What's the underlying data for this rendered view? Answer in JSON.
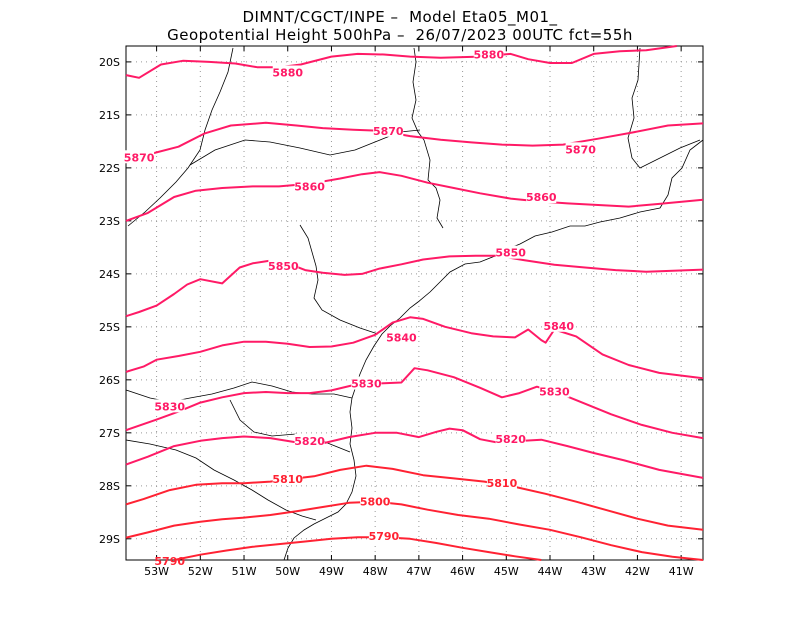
{
  "title_line1": "DIMNT/CGCT/INPE –  Model Eta05_M01_",
  "title_line2": "Geopotential Height 500hPa –  26/07/2023 00UTC fct=55h",
  "chart_data": {
    "type": "contour",
    "variable": "Geopotential Height 500hPa",
    "grid": true,
    "xlim": [
      -53.7,
      -40.5
    ],
    "ylim": [
      -29.4,
      -19.7
    ],
    "x_ticks": [
      {
        "value": -53,
        "label": "53W"
      },
      {
        "value": -52,
        "label": "52W"
      },
      {
        "value": -51,
        "label": "51W"
      },
      {
        "value": -50,
        "label": "50W"
      },
      {
        "value": -49,
        "label": "49W"
      },
      {
        "value": -48,
        "label": "48W"
      },
      {
        "value": -47,
        "label": "47W"
      },
      {
        "value": -46,
        "label": "46W"
      },
      {
        "value": -45,
        "label": "45W"
      },
      {
        "value": -44,
        "label": "44W"
      },
      {
        "value": -43,
        "label": "43W"
      },
      {
        "value": -42,
        "label": "42W"
      },
      {
        "value": -41,
        "label": "41W"
      }
    ],
    "y_ticks": [
      {
        "value": -20,
        "label": "20S"
      },
      {
        "value": -21,
        "label": "21S"
      },
      {
        "value": -22,
        "label": "22S"
      },
      {
        "value": -23,
        "label": "23S"
      },
      {
        "value": -24,
        "label": "24S"
      },
      {
        "value": -25,
        "label": "25S"
      },
      {
        "value": -26,
        "label": "26S"
      },
      {
        "value": -27,
        "label": "27S"
      },
      {
        "value": -28,
        "label": "28S"
      },
      {
        "value": -29,
        "label": "29S"
      }
    ],
    "contours": [
      {
        "level": "5880",
        "color": "#ff1a66",
        "points": [
          [
            -53.7,
            -20.25
          ],
          [
            -53.4,
            -20.3
          ],
          [
            -52.9,
            -20.05
          ],
          [
            -52.4,
            -19.98
          ],
          [
            -51.8,
            -20.0
          ],
          [
            -51.2,
            -20.03
          ],
          [
            -50.7,
            -20.1
          ],
          [
            -50.2,
            -20.1
          ],
          [
            -49.7,
            -20.05
          ],
          [
            -49.0,
            -19.9
          ],
          [
            -48.4,
            -19.85
          ],
          [
            -47.8,
            -19.86
          ],
          [
            -47.2,
            -19.9
          ],
          [
            -46.5,
            -19.92
          ],
          [
            -45.6,
            -19.9
          ],
          [
            -44.9,
            -19.85
          ],
          [
            -44.5,
            -19.95
          ],
          [
            -44.0,
            -20.02
          ],
          [
            -43.5,
            -20.02
          ],
          [
            -43.0,
            -19.85
          ],
          [
            -42.4,
            -19.8
          ],
          [
            -41.8,
            -19.78
          ],
          [
            -41.1,
            -19.7
          ]
        ],
        "labels": [
          [
            -50.0,
            -20.2
          ],
          [
            -45.4,
            -19.86
          ]
        ]
      },
      {
        "level": "5870",
        "color": "#ff1a66",
        "points": [
          [
            -53.7,
            -21.9
          ],
          [
            -53.2,
            -21.75
          ],
          [
            -52.5,
            -21.6
          ],
          [
            -51.9,
            -21.35
          ],
          [
            -51.3,
            -21.2
          ],
          [
            -50.5,
            -21.15
          ],
          [
            -49.8,
            -21.2
          ],
          [
            -49.2,
            -21.25
          ],
          [
            -48.5,
            -21.28
          ],
          [
            -47.9,
            -21.3
          ],
          [
            -47.2,
            -21.4
          ],
          [
            -46.5,
            -21.47
          ],
          [
            -45.8,
            -21.52
          ],
          [
            -45.1,
            -21.56
          ],
          [
            -44.4,
            -21.58
          ],
          [
            -43.7,
            -21.56
          ],
          [
            -42.9,
            -21.45
          ],
          [
            -42.1,
            -21.33
          ],
          [
            -41.3,
            -21.2
          ],
          [
            -40.5,
            -21.16
          ]
        ],
        "labels": [
          [
            -53.4,
            -21.8
          ],
          [
            -47.7,
            -21.3
          ],
          [
            -43.3,
            -21.65
          ]
        ]
      },
      {
        "level": "5860",
        "color": "#ff1a66",
        "points": [
          [
            -53.7,
            -23.0
          ],
          [
            -53.2,
            -22.85
          ],
          [
            -52.6,
            -22.55
          ],
          [
            -52.1,
            -22.43
          ],
          [
            -51.5,
            -22.38
          ],
          [
            -50.8,
            -22.35
          ],
          [
            -50.2,
            -22.35
          ],
          [
            -49.5,
            -22.3
          ],
          [
            -48.8,
            -22.2
          ],
          [
            -48.3,
            -22.12
          ],
          [
            -47.9,
            -22.08
          ],
          [
            -47.4,
            -22.15
          ],
          [
            -46.8,
            -22.28
          ],
          [
            -46.2,
            -22.38
          ],
          [
            -45.6,
            -22.48
          ],
          [
            -44.9,
            -22.58
          ],
          [
            -44.3,
            -22.63
          ],
          [
            -43.6,
            -22.67
          ],
          [
            -42.9,
            -22.7
          ],
          [
            -42.2,
            -22.73
          ],
          [
            -41.5,
            -22.68
          ],
          [
            -40.5,
            -22.6
          ]
        ],
        "labels": [
          [
            -49.5,
            -22.35
          ],
          [
            -44.2,
            -22.55
          ]
        ]
      },
      {
        "level": "5850",
        "color": "#ff1a66",
        "points": [
          [
            -53.7,
            -24.8
          ],
          [
            -53.4,
            -24.72
          ],
          [
            -53.0,
            -24.6
          ],
          [
            -52.6,
            -24.38
          ],
          [
            -52.3,
            -24.2
          ],
          [
            -52.0,
            -24.1
          ],
          [
            -51.5,
            -24.18
          ],
          [
            -51.1,
            -23.88
          ],
          [
            -50.8,
            -23.8
          ],
          [
            -50.4,
            -23.75
          ],
          [
            -50.0,
            -23.8
          ],
          [
            -49.6,
            -23.93
          ],
          [
            -49.2,
            -23.98
          ],
          [
            -48.7,
            -24.02
          ],
          [
            -48.3,
            -24.0
          ],
          [
            -47.9,
            -23.9
          ],
          [
            -47.4,
            -23.82
          ],
          [
            -46.9,
            -23.73
          ],
          [
            -46.3,
            -23.67
          ],
          [
            -45.7,
            -23.66
          ],
          [
            -45.2,
            -23.66
          ],
          [
            -44.6,
            -23.74
          ],
          [
            -43.9,
            -23.83
          ],
          [
            -43.2,
            -23.88
          ],
          [
            -42.5,
            -23.93
          ],
          [
            -41.8,
            -23.96
          ],
          [
            -40.5,
            -23.92
          ]
        ],
        "labels": [
          [
            -50.1,
            -23.85
          ],
          [
            -44.9,
            -23.6
          ]
        ]
      },
      {
        "level": "5840",
        "color": "#ff1a66",
        "points": [
          [
            -53.7,
            -25.85
          ],
          [
            -53.3,
            -25.75
          ],
          [
            -53.0,
            -25.62
          ],
          [
            -52.5,
            -25.55
          ],
          [
            -52.0,
            -25.47
          ],
          [
            -51.5,
            -25.35
          ],
          [
            -51.0,
            -25.28
          ],
          [
            -50.5,
            -25.28
          ],
          [
            -50.0,
            -25.32
          ],
          [
            -49.5,
            -25.38
          ],
          [
            -49.0,
            -25.37
          ],
          [
            -48.5,
            -25.3
          ],
          [
            -48.0,
            -25.15
          ],
          [
            -47.6,
            -24.92
          ],
          [
            -47.2,
            -24.82
          ],
          [
            -46.9,
            -24.85
          ],
          [
            -46.4,
            -25.0
          ],
          [
            -45.8,
            -25.12
          ],
          [
            -45.3,
            -25.18
          ],
          [
            -44.8,
            -25.2
          ],
          [
            -44.5,
            -25.05
          ],
          [
            -44.2,
            -25.25
          ],
          [
            -44.1,
            -25.3
          ],
          [
            -43.9,
            -25.05
          ],
          [
            -43.4,
            -25.18
          ],
          [
            -42.8,
            -25.52
          ],
          [
            -42.2,
            -25.72
          ],
          [
            -41.5,
            -25.87
          ],
          [
            -40.5,
            -25.97
          ]
        ],
        "labels": [
          [
            -47.4,
            -25.2
          ],
          [
            -43.8,
            -24.98
          ]
        ]
      },
      {
        "level": "5830",
        "color": "#ff1a66",
        "points": [
          [
            -53.7,
            -26.95
          ],
          [
            -53.0,
            -26.75
          ],
          [
            -52.5,
            -26.6
          ],
          [
            -52.0,
            -26.43
          ],
          [
            -51.5,
            -26.33
          ],
          [
            -51.0,
            -26.25
          ],
          [
            -50.5,
            -26.23
          ],
          [
            -50.0,
            -26.25
          ],
          [
            -49.5,
            -26.25
          ],
          [
            -49.0,
            -26.2
          ],
          [
            -48.5,
            -26.1
          ],
          [
            -47.9,
            -26.07
          ],
          [
            -47.4,
            -26.05
          ],
          [
            -47.1,
            -25.78
          ],
          [
            -46.8,
            -25.82
          ],
          [
            -46.2,
            -25.95
          ],
          [
            -45.6,
            -26.15
          ],
          [
            -45.1,
            -26.33
          ],
          [
            -44.7,
            -26.25
          ],
          [
            -44.3,
            -26.13
          ],
          [
            -43.8,
            -26.25
          ],
          [
            -43.2,
            -26.45
          ],
          [
            -42.6,
            -26.65
          ],
          [
            -41.9,
            -26.85
          ],
          [
            -41.2,
            -27.0
          ],
          [
            -40.5,
            -27.1
          ]
        ],
        "labels": [
          [
            -52.7,
            -26.5
          ],
          [
            -48.2,
            -26.07
          ],
          [
            -43.9,
            -26.22
          ]
        ]
      },
      {
        "level": "5820",
        "color": "#ff1a66",
        "points": [
          [
            -53.7,
            -27.6
          ],
          [
            -53.2,
            -27.45
          ],
          [
            -52.6,
            -27.25
          ],
          [
            -52.0,
            -27.15
          ],
          [
            -51.5,
            -27.1
          ],
          [
            -51.0,
            -27.07
          ],
          [
            -50.4,
            -27.1
          ],
          [
            -49.8,
            -27.18
          ],
          [
            -49.2,
            -27.2
          ],
          [
            -48.6,
            -27.08
          ],
          [
            -48.0,
            -27.0
          ],
          [
            -47.5,
            -27.0
          ],
          [
            -47.0,
            -27.08
          ],
          [
            -46.6,
            -26.98
          ],
          [
            -46.3,
            -26.92
          ],
          [
            -46.0,
            -26.95
          ],
          [
            -45.6,
            -27.12
          ],
          [
            -45.1,
            -27.2
          ],
          [
            -44.6,
            -27.15
          ],
          [
            -44.2,
            -27.13
          ],
          [
            -43.6,
            -27.25
          ],
          [
            -43.0,
            -27.38
          ],
          [
            -42.3,
            -27.52
          ],
          [
            -41.5,
            -27.7
          ],
          [
            -40.5,
            -27.85
          ]
        ],
        "labels": [
          [
            -49.5,
            -27.15
          ],
          [
            -44.9,
            -27.12
          ]
        ]
      },
      {
        "level": "5810",
        "color": "#ff2233",
        "points": [
          [
            -53.7,
            -28.35
          ],
          [
            -53.3,
            -28.25
          ],
          [
            -52.7,
            -28.08
          ],
          [
            -52.1,
            -27.98
          ],
          [
            -51.5,
            -27.95
          ],
          [
            -51.0,
            -27.95
          ],
          [
            -50.4,
            -27.92
          ],
          [
            -49.9,
            -27.87
          ],
          [
            -49.4,
            -27.82
          ],
          [
            -48.8,
            -27.7
          ],
          [
            -48.2,
            -27.62
          ],
          [
            -47.6,
            -27.68
          ],
          [
            -46.9,
            -27.8
          ],
          [
            -46.2,
            -27.86
          ],
          [
            -45.5,
            -27.92
          ],
          [
            -44.8,
            -28.02
          ],
          [
            -44.1,
            -28.15
          ],
          [
            -43.4,
            -28.3
          ],
          [
            -42.7,
            -28.46
          ],
          [
            -42.0,
            -28.62
          ],
          [
            -41.3,
            -28.75
          ],
          [
            -40.5,
            -28.83
          ]
        ],
        "labels": [
          [
            -50.0,
            -27.87
          ],
          [
            -45.1,
            -27.95
          ]
        ]
      },
      {
        "level": "5800",
        "color": "#ff2233",
        "points": [
          [
            -53.7,
            -28.98
          ],
          [
            -53.2,
            -28.88
          ],
          [
            -52.6,
            -28.75
          ],
          [
            -52.0,
            -28.68
          ],
          [
            -51.5,
            -28.63
          ],
          [
            -51.0,
            -28.6
          ],
          [
            -50.4,
            -28.55
          ],
          [
            -49.8,
            -28.48
          ],
          [
            -49.2,
            -28.4
          ],
          [
            -48.6,
            -28.32
          ],
          [
            -48.0,
            -28.3
          ],
          [
            -47.4,
            -28.35
          ],
          [
            -46.8,
            -28.45
          ],
          [
            -46.1,
            -28.55
          ],
          [
            -45.4,
            -28.62
          ],
          [
            -44.7,
            -28.73
          ],
          [
            -44.0,
            -28.83
          ],
          [
            -43.3,
            -28.97
          ],
          [
            -42.6,
            -29.12
          ],
          [
            -41.9,
            -29.25
          ],
          [
            -41.2,
            -29.34
          ],
          [
            -40.5,
            -29.4
          ]
        ],
        "labels": [
          [
            -48.0,
            -28.3
          ]
        ]
      },
      {
        "level": "5790",
        "color": "#ff2233",
        "points": [
          [
            -52.6,
            -29.4
          ],
          [
            -52.0,
            -29.3
          ],
          [
            -51.4,
            -29.22
          ],
          [
            -50.8,
            -29.15
          ],
          [
            -50.2,
            -29.1
          ],
          [
            -49.6,
            -29.05
          ],
          [
            -49.0,
            -29.0
          ],
          [
            -48.4,
            -28.97
          ],
          [
            -47.8,
            -28.97
          ],
          [
            -47.2,
            -29.0
          ],
          [
            -46.6,
            -29.08
          ],
          [
            -46.0,
            -29.17
          ],
          [
            -45.4,
            -29.25
          ],
          [
            -44.8,
            -29.33
          ],
          [
            -44.2,
            -29.4
          ]
        ],
        "labels": [
          [
            -47.8,
            -28.95
          ]
        ]
      },
      {
        "level": "5790",
        "color": "#ff2233",
        "points": [],
        "labels": [
          [
            -52.7,
            -29.42
          ]
        ]
      }
    ]
  }
}
